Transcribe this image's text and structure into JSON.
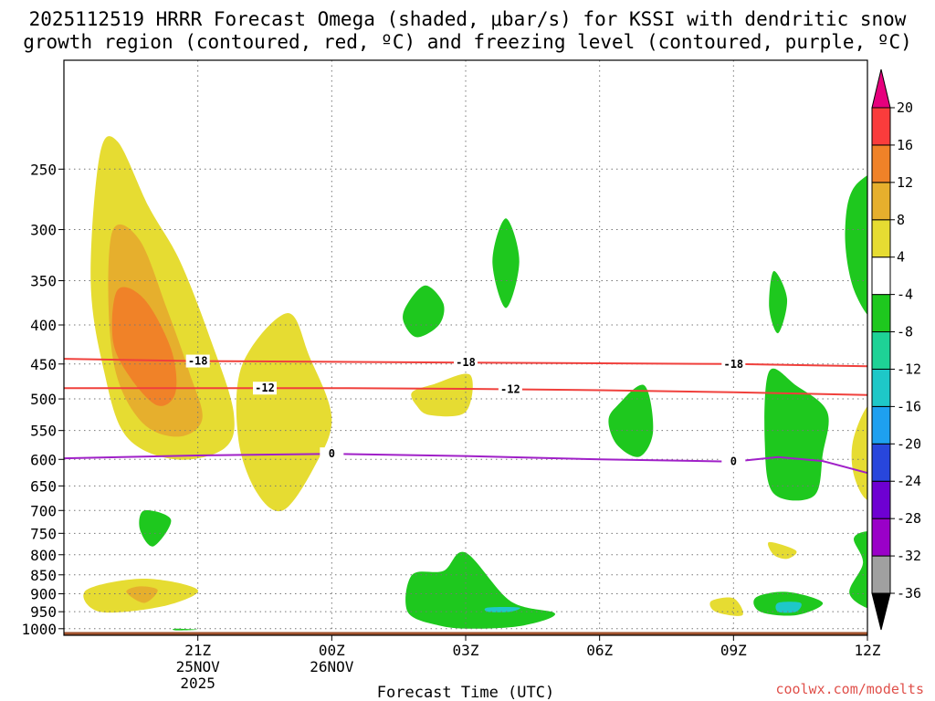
{
  "chart_data": {
    "type": "time-height contour",
    "title_line1": "2025112519 HRRR Forecast Omega (shaded, μbar/s) for KSSI with dendritic snow",
    "title_line2": "growth region (contoured, red, ºC) and freezing level (contoured, purple, ºC)",
    "xlabel": "Forecast Time (UTC)",
    "credit": "coolwx.com/modelts",
    "x_range_hours": [
      -3.0,
      15.0
    ],
    "y_range_hpa": [
      1020,
      180
    ],
    "y_ticks": [
      250,
      300,
      350,
      400,
      450,
      500,
      550,
      600,
      650,
      700,
      750,
      800,
      850,
      900,
      950,
      1000
    ],
    "x_ticks": [
      {
        "hour": 0,
        "label": "21Z",
        "sub1": "25NOV",
        "sub2": "2025"
      },
      {
        "hour": 3,
        "label": "00Z",
        "sub1": "26NOV",
        "sub2": ""
      },
      {
        "hour": 6,
        "label": "03Z",
        "sub1": "",
        "sub2": ""
      },
      {
        "hour": 9,
        "label": "06Z",
        "sub1": "",
        "sub2": ""
      },
      {
        "hour": 12,
        "label": "09Z",
        "sub1": "",
        "sub2": ""
      },
      {
        "hour": 15,
        "label": "12Z",
        "sub1": "",
        "sub2": ""
      }
    ],
    "colorbar": {
      "levels": [
        -36,
        -32,
        -28,
        -24,
        -20,
        -16,
        -12,
        -8,
        -4,
        4,
        8,
        12,
        16,
        20
      ],
      "colors": [
        "#a0a0a0",
        "#9a00c8",
        "#6e00d2",
        "#2846dc",
        "#1ea0f0",
        "#1ec8c8",
        "#1ed296",
        "#1ec81e",
        "#ffffff",
        "#e6dc32",
        "#e6af2d",
        "#f08228",
        "#fa3c3c",
        "#e6007d"
      ],
      "below_color": "#000000",
      "above_color": "#e6007d"
    },
    "contours": [
      {
        "name": "isotherm -18C",
        "label": "-18",
        "color": "#f0403c",
        "points": [
          [
            -3,
            443
          ],
          [
            0,
            446
          ],
          [
            3,
            447
          ],
          [
            6,
            448
          ],
          [
            9,
            449
          ],
          [
            12,
            450
          ],
          [
            15,
            453
          ],
          [
            18,
            456
          ]
        ]
      },
      {
        "name": "isotherm -12C",
        "label": "-12",
        "color": "#f0403c",
        "points": [
          [
            -3,
            484
          ],
          [
            0,
            484
          ],
          [
            3,
            484
          ],
          [
            6,
            485
          ],
          [
            9,
            487
          ],
          [
            12,
            490
          ],
          [
            15,
            494
          ],
          [
            18,
            500
          ]
        ]
      },
      {
        "name": "freezing level 0C",
        "label": "0",
        "color": "#a020c8",
        "points": [
          [
            -3,
            598
          ],
          [
            0,
            593
          ],
          [
            3,
            590
          ],
          [
            6,
            594
          ],
          [
            9,
            600
          ],
          [
            12,
            604
          ],
          [
            13,
            596
          ],
          [
            14,
            603
          ],
          [
            15,
            625
          ],
          [
            16,
            617
          ],
          [
            18,
            633
          ]
        ]
      }
    ],
    "omega_regions": [
      {
        "level": 4,
        "points": [
          [
            -2.2,
            240
          ],
          [
            -1.8,
            230
          ],
          [
            -1.1,
            280
          ],
          [
            -0.4,
            330
          ],
          [
            0.3,
            420
          ],
          [
            0.8,
            520
          ],
          [
            0.6,
            580
          ],
          [
            -0.5,
            600
          ],
          [
            -1.6,
            560
          ],
          [
            -2.1,
            460
          ],
          [
            -2.4,
            350
          ]
        ]
      },
      {
        "level": 8,
        "points": [
          [
            -1.9,
            300
          ],
          [
            -1.3,
            310
          ],
          [
            -0.7,
            380
          ],
          [
            -0.2,
            460
          ],
          [
            0.1,
            530
          ],
          [
            -0.4,
            560
          ],
          [
            -1.2,
            540
          ],
          [
            -1.8,
            470
          ],
          [
            -2.0,
            380
          ]
        ]
      },
      {
        "level": 12,
        "points": [
          [
            -1.8,
            360
          ],
          [
            -1.2,
            370
          ],
          [
            -0.6,
            430
          ],
          [
            -0.5,
            490
          ],
          [
            -0.9,
            510
          ],
          [
            -1.5,
            470
          ],
          [
            -1.9,
            420
          ]
        ]
      },
      {
        "level": 4,
        "points": [
          [
            1,
            450
          ],
          [
            2,
            386
          ],
          [
            2.5,
            440
          ],
          [
            3,
            530
          ],
          [
            2.6,
            615
          ],
          [
            1.9,
            700
          ],
          [
            1.3,
            660
          ],
          [
            0.9,
            560
          ]
        ]
      },
      {
        "level": -4,
        "points": [
          [
            -1.2,
            700
          ],
          [
            -0.6,
            720
          ],
          [
            -1.0,
            780
          ],
          [
            -1.3,
            740
          ]
        ]
      },
      {
        "level": 4,
        "points": [
          [
            -2.5,
            890
          ],
          [
            -1.2,
            860
          ],
          [
            0.0,
            890
          ],
          [
            -0.8,
            935
          ],
          [
            -2.2,
            950
          ]
        ]
      },
      {
        "level": 8,
        "points": [
          [
            -1.3,
            880
          ],
          [
            -0.9,
            890
          ],
          [
            -1.2,
            925
          ],
          [
            -1.6,
            895
          ]
        ]
      },
      {
        "level": -4,
        "points": [
          [
            -0.5,
            1000
          ],
          [
            0,
            1003
          ],
          [
            -0.5,
            1005
          ]
        ]
      },
      {
        "level": -4,
        "points": [
          [
            4.7,
            375
          ],
          [
            5.1,
            355
          ],
          [
            5.5,
            375
          ],
          [
            5.4,
            400
          ],
          [
            4.9,
            415
          ],
          [
            4.6,
            395
          ]
        ]
      },
      {
        "level": -4,
        "points": [
          [
            6.9,
            290
          ],
          [
            7.2,
            330
          ],
          [
            6.9,
            380
          ],
          [
            6.6,
            330
          ]
        ]
      },
      {
        "level": 4,
        "points": [
          [
            4.8,
            490
          ],
          [
            5.3,
            478
          ],
          [
            6.1,
            465
          ],
          [
            6.0,
            520
          ],
          [
            5.2,
            525
          ],
          [
            4.9,
            510
          ]
        ]
      },
      {
        "level": -4,
        "points": [
          [
            4.8,
            850
          ],
          [
            5.5,
            840
          ],
          [
            6.0,
            795
          ],
          [
            7.0,
            920
          ],
          [
            8.0,
            955
          ],
          [
            7.3,
            990
          ],
          [
            6.2,
            1000
          ],
          [
            5.4,
            990
          ],
          [
            4.7,
            950
          ]
        ]
      },
      {
        "level": -12,
        "points": [
          [
            6.5,
            938
          ],
          [
            7.2,
            938
          ],
          [
            7.0,
            950
          ],
          [
            6.5,
            950
          ]
        ]
      },
      {
        "level": -4,
        "points": [
          [
            9.4,
            510
          ],
          [
            10.0,
            480
          ],
          [
            10.2,
            550
          ],
          [
            9.9,
            595
          ],
          [
            9.4,
            575
          ],
          [
            9.2,
            535
          ]
        ]
      },
      {
        "level": -4,
        "points": [
          [
            12.9,
            340
          ],
          [
            13.2,
            370
          ],
          [
            13.0,
            410
          ],
          [
            12.8,
            380
          ]
        ]
      },
      {
        "level": -4,
        "points": [
          [
            12.8,
            460
          ],
          [
            13.4,
            480
          ],
          [
            14.1,
            520
          ],
          [
            14.0,
            590
          ],
          [
            13.8,
            670
          ],
          [
            12.9,
            665
          ],
          [
            12.7,
            570
          ]
        ]
      },
      {
        "level": 4,
        "points": [
          [
            12.8,
            770
          ],
          [
            13.4,
            790
          ],
          [
            13.2,
            810
          ],
          [
            12.9,
            800
          ]
        ]
      },
      {
        "level": 4,
        "points": [
          [
            11.5,
            920
          ],
          [
            12.0,
            912
          ],
          [
            12.2,
            960
          ],
          [
            11.6,
            950
          ]
        ]
      },
      {
        "level": -4,
        "points": [
          [
            12.5,
            910
          ],
          [
            13.2,
            895
          ],
          [
            14.0,
            925
          ],
          [
            13.4,
            960
          ],
          [
            12.6,
            950
          ]
        ]
      },
      {
        "level": -12,
        "points": [
          [
            13.0,
            925
          ],
          [
            13.5,
            925
          ],
          [
            13.4,
            950
          ],
          [
            13.0,
            950
          ]
        ]
      },
      {
        "level": -4,
        "points": [
          [
            14.5,
            300
          ],
          [
            14.8,
            260
          ],
          [
            16.0,
            250
          ],
          [
            15.9,
            360
          ],
          [
            15.3,
            400
          ],
          [
            14.7,
            360
          ]
        ]
      },
      {
        "level": -8,
        "points": [
          [
            15.1,
            300
          ],
          [
            15.3,
            330
          ],
          [
            15.2,
            380
          ],
          [
            15.0,
            340
          ]
        ]
      },
      {
        "level": 4,
        "points": [
          [
            14.7,
            560
          ],
          [
            15.2,
            500
          ],
          [
            16.0,
            545
          ],
          [
            15.8,
            610
          ],
          [
            15.1,
            680
          ],
          [
            14.7,
            630
          ]
        ]
      },
      {
        "level": 8,
        "points": [
          [
            15.05,
            580
          ],
          [
            15.2,
            570
          ],
          [
            15.2,
            630
          ],
          [
            15.0,
            610
          ]
        ]
      },
      {
        "level": -4,
        "points": [
          [
            14.7,
            760
          ],
          [
            15.2,
            745
          ],
          [
            16.0,
            770
          ],
          [
            16.0,
            960
          ],
          [
            15.2,
            950
          ],
          [
            14.6,
            900
          ],
          [
            14.9,
            820
          ]
        ]
      }
    ],
    "terrain_color": "#a0522d",
    "terrain_top_hpa": 1010
  }
}
